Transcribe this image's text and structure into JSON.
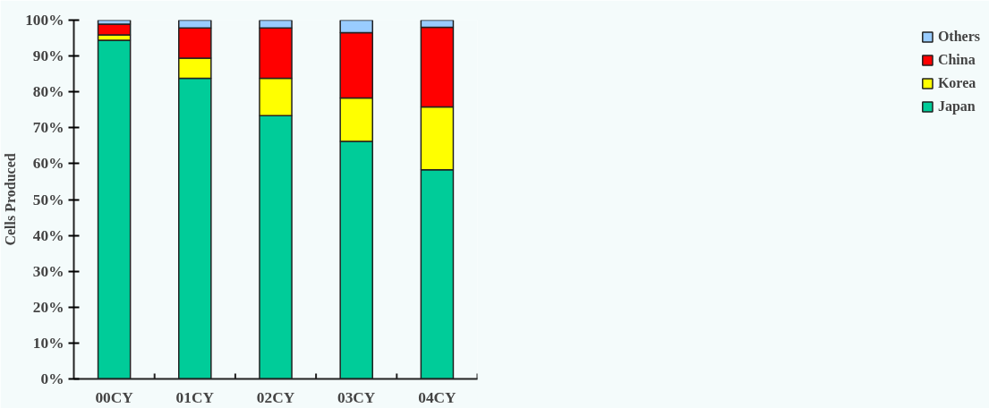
{
  "chart_data": {
    "type": "bar",
    "stacked": true,
    "ylabel": "Cells Produced",
    "categories": [
      "00CY",
      "01CY",
      "02CY",
      "03CY",
      "04CY"
    ],
    "series": [
      {
        "name": "Japan",
        "color": "#00cc99",
        "values": [
          94.4,
          83.8,
          73.4,
          66.2,
          58.3
        ]
      },
      {
        "name": "Korea",
        "color": "#ffff00",
        "values": [
          1.5,
          5.6,
          10.4,
          12.1,
          17.5
        ]
      },
      {
        "name": "China",
        "color": "#ff0000",
        "values": [
          3.0,
          8.4,
          14.0,
          18.2,
          22.2
        ]
      },
      {
        "name": "Others",
        "color": "#99ccff",
        "values": [
          1.1,
          2.2,
          2.2,
          3.5,
          2.0
        ]
      }
    ],
    "ylim": [
      0,
      100
    ],
    "yticks": [
      {
        "value": 0,
        "label": "0%"
      },
      {
        "value": 10,
        "label": "10%"
      },
      {
        "value": 20,
        "label": "20%"
      },
      {
        "value": 30,
        "label": "30%"
      },
      {
        "value": 40,
        "label": "40%"
      },
      {
        "value": 50,
        "label": "50%"
      },
      {
        "value": 60,
        "label": "60%"
      },
      {
        "value": 70,
        "label": "70%"
      },
      {
        "value": 80,
        "label": "80%"
      },
      {
        "value": 90,
        "label": "90%"
      },
      {
        "value": 100,
        "label": "100%"
      }
    ],
    "grid": false,
    "legend": "right"
  }
}
